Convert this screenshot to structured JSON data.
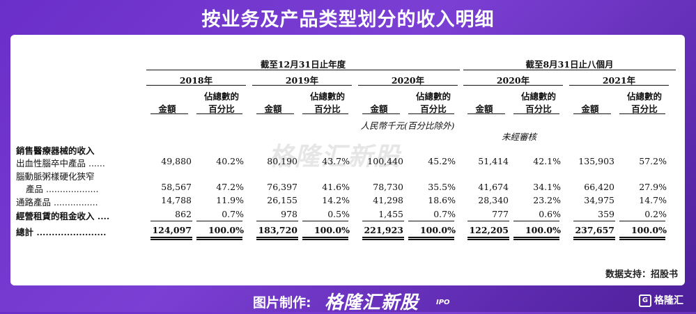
{
  "title": "按业务及产品类型划分的收入明细",
  "watermark": "格隆汇新股",
  "header": {
    "group1": "截至12月31日止年度",
    "group2": "截至8月31日止八個月",
    "years": [
      "2018年",
      "2019年",
      "2020年",
      "2020年",
      "2021年"
    ],
    "col_amount": "金額",
    "col_pct_line1": "佔總數的",
    "col_pct_line2": "百分比",
    "unit_note": "人民幣千元(百分比除外)",
    "unaudited": "未經審核"
  },
  "section_label": "銷售醫療器械的收入",
  "rows": [
    {
      "label": "出血性腦卒中產品 ......",
      "values": [
        "49,880",
        "40.2%",
        "80,190",
        "43.7%",
        "100,440",
        "45.2%",
        "51,414",
        "42.1%",
        "135,903",
        "57.2%"
      ]
    },
    {
      "label": "腦動脈粥樣硬化狹窄",
      "label2": "產品 ...................",
      "values": [
        "58,567",
        "47.2%",
        "76,397",
        "41.6%",
        "78,730",
        "35.5%",
        "41,674",
        "34.1%",
        "66,420",
        "27.9%"
      ]
    },
    {
      "label": "通路產品 ................",
      "values": [
        "14,788",
        "11.9%",
        "26,155",
        "14.2%",
        "41,298",
        "18.6%",
        "28,340",
        "23.2%",
        "34,975",
        "14.7%"
      ]
    },
    {
      "label": "經營租賃的租金收入 ....",
      "values": [
        "862",
        "0.7%",
        "978",
        "0.5%",
        "1,455",
        "0.7%",
        "777",
        "0.6%",
        "359",
        "0.2%"
      ]
    }
  ],
  "total": {
    "label": "總計 .......................",
    "values": [
      "124,097",
      "100.0%",
      "183,720",
      "100.0%",
      "221,923",
      "100.0%",
      "122,205",
      "100.0%",
      "237,657",
      "100.0%"
    ]
  },
  "source": "数据支持：招股书",
  "footer": {
    "maker": "图片制作:",
    "brand": "格隆汇新股",
    "ipo": "IPO",
    "logo": "格隆汇",
    "logo_mark": "G"
  }
}
